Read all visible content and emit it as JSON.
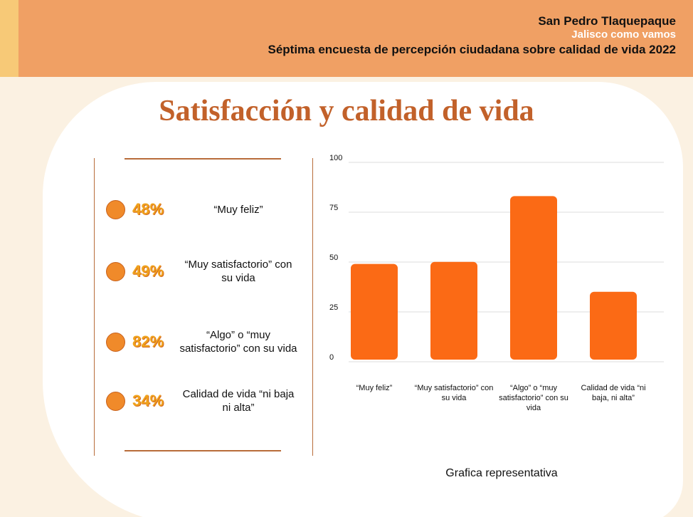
{
  "header": {
    "line1": "San Pedro Tlaquepaque",
    "line2": "Jalisco como vamos",
    "line3": "Séptima encuesta de percepción ciudadana sobre calidad de vida 2022"
  },
  "title": "Satisfacción y calidad de vida",
  "panel": {
    "items": [
      {
        "percent": "48%",
        "label": "“Muy feliz”"
      },
      {
        "percent": "49%",
        "label": "“Muy satisfactorio” con su vida"
      },
      {
        "percent": "82%",
        "label": "“Algo” o “muy satisfactorio” con su vida"
      },
      {
        "percent": "34%",
        "label": "Calidad de vida “ni baja ni alta”"
      }
    ]
  },
  "chart_data": {
    "type": "bar",
    "categories": [
      "“Muy feliz”",
      "“Muy satisfactorio” con su vida",
      "“Algo” o “muy satisfactorio” con su vida",
      "Calidad de vida “ni baja, ni alta”"
    ],
    "values": [
      48,
      49,
      82,
      34
    ],
    "color": "#fb6a15",
    "ylim": [
      0,
      100
    ],
    "yticks": [
      0,
      25,
      50,
      75,
      100
    ],
    "grid": true,
    "caption": "Grafica representativa"
  }
}
